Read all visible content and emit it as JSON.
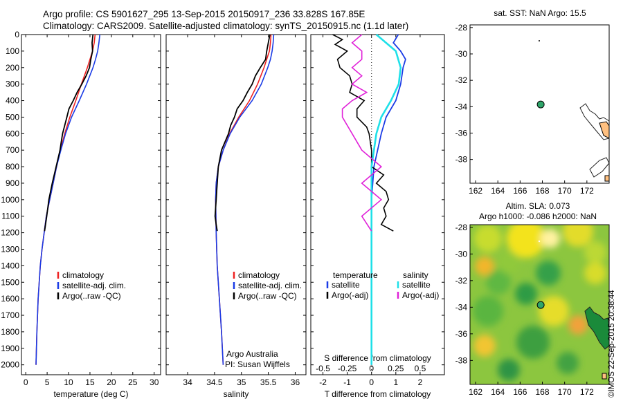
{
  "header": {
    "line1": "Argo profile: CS 5901627_295 13-Sep-2015 20150917_236 33.828S 167.85E",
    "line2": "Climatology: CARS2009. Satellite-adjusted climatology: synTS_20150915.nc (1.1d later)"
  },
  "credit": "©IMOS 22-Sep-2015 20:38:44",
  "colors": {
    "climatology": "#ee2222",
    "satellite": "#1a3be6",
    "argo": "#000000",
    "sal_satellite": "#1ee0e8",
    "sal_argo": "#e020d8"
  },
  "depth_axis": {
    "ticks": [
      0,
      100,
      200,
      300,
      400,
      500,
      600,
      700,
      800,
      900,
      1000,
      1100,
      1200,
      1300,
      1400,
      1500,
      1600,
      1700,
      1800,
      1900,
      2000
    ],
    "range": [
      0,
      2060
    ],
    "reversed": true
  },
  "chart_data": [
    {
      "id": "temperature",
      "type": "line",
      "xlabel": "temperature (deg C)",
      "ylabel": "",
      "xlim": [
        -1,
        31.5
      ],
      "xticks": [
        0,
        5,
        10,
        15,
        20,
        25,
        30
      ],
      "legend": [
        "climatology",
        "satellite-adj. clim.",
        "Argo(..raw -QC)"
      ],
      "series": [
        {
          "name": "climatology",
          "depth": [
            0,
            50,
            100,
            150,
            200,
            300,
            400,
            500,
            600,
            700,
            800,
            900,
            1000,
            1100,
            1200,
            1300,
            1400,
            1600,
            1800,
            2000
          ],
          "values": [
            16.2,
            16.0,
            15.6,
            15.0,
            14.4,
            13.0,
            11.7,
            10.3,
            9.1,
            8.1,
            7.2,
            6.4,
            5.6,
            4.8,
            4.3,
            3.8,
            3.4,
            2.9,
            2.6,
            2.4
          ]
        },
        {
          "name": "satellite-adj. clim.",
          "depth": [
            0,
            50,
            100,
            150,
            200,
            300,
            400,
            500,
            600,
            700,
            800,
            900,
            1000,
            1100,
            1200,
            1300,
            1400,
            1600,
            1800,
            2000
          ],
          "values": [
            17.3,
            17.1,
            16.8,
            16.3,
            15.7,
            14.2,
            12.5,
            10.7,
            9.3,
            8.2,
            7.2,
            6.4,
            5.6,
            4.8,
            4.3,
            3.8,
            3.4,
            2.9,
            2.6,
            2.4
          ]
        },
        {
          "name": "Argo(..raw -QC)",
          "depth": [
            0,
            50,
            100,
            150,
            200,
            250,
            300,
            350,
            400,
            450,
            500,
            550,
            600,
            650,
            700,
            800,
            900,
            1000,
            1100,
            1190
          ],
          "values": [
            15.7,
            15.5,
            15.6,
            15.2,
            14.9,
            14.1,
            13.1,
            12.0,
            11.1,
            10.1,
            9.6,
            9.1,
            8.6,
            8.3,
            8.0,
            7.1,
            6.2,
            5.4,
            4.9,
            4.4
          ]
        }
      ]
    },
    {
      "id": "salinity",
      "type": "line",
      "xlabel": "salinity",
      "ylabel": "",
      "xlim": [
        33.6,
        36.2
      ],
      "xticks": [
        34,
        34.5,
        35,
        35.5,
        36
      ],
      "legend": [
        "climatology",
        "satellite-adj. clim.",
        "Argo(..raw -QC)"
      ],
      "annotation": [
        "Argo Australia",
        "PI: Susan Wijffels"
      ],
      "series": [
        {
          "name": "climatology",
          "depth": [
            0,
            50,
            100,
            150,
            200,
            300,
            400,
            500,
            600,
            700,
            800,
            900,
            1000,
            1200,
            1400,
            1600,
            1800,
            2000
          ],
          "values": [
            35.55,
            35.54,
            35.52,
            35.47,
            35.42,
            35.3,
            35.15,
            34.95,
            34.78,
            34.66,
            34.57,
            34.53,
            34.52,
            34.53,
            34.55,
            34.59,
            34.63,
            34.66
          ]
        },
        {
          "name": "satellite-adj. clim.",
          "depth": [
            0,
            50,
            100,
            150,
            200,
            300,
            400,
            500,
            600,
            700,
            800,
            900,
            1000,
            1200,
            1400,
            1600,
            1800,
            2000
          ],
          "values": [
            35.6,
            35.59,
            35.57,
            35.54,
            35.49,
            35.37,
            35.2,
            34.97,
            34.79,
            34.66,
            34.57,
            34.53,
            34.52,
            34.53,
            34.55,
            34.59,
            34.63,
            34.66
          ]
        },
        {
          "name": "Argo(..raw -QC)",
          "depth": [
            0,
            50,
            100,
            150,
            200,
            250,
            300,
            350,
            400,
            450,
            500,
            550,
            600,
            700,
            800,
            900,
            950,
            1000,
            1050,
            1100,
            1150,
            1190
          ],
          "values": [
            35.53,
            35.5,
            35.47,
            35.45,
            35.35,
            35.26,
            35.2,
            35.11,
            35.03,
            34.92,
            34.87,
            34.8,
            34.76,
            34.63,
            34.57,
            34.55,
            34.54,
            34.53,
            34.52,
            34.51,
            34.53,
            34.55
          ]
        }
      ]
    },
    {
      "id": "difference",
      "type": "line",
      "xlabel": "T difference from climatology",
      "s_label": "S difference from climatology",
      "xlim": [
        -2.5,
        3
      ],
      "xticks": [
        -2,
        -1,
        0,
        1,
        2
      ],
      "s_xticks": [
        "-0.5",
        "-0.25",
        "0",
        "0.25",
        "0.5"
      ],
      "legend_titles": [
        "temperature",
        "salinity"
      ],
      "legend": [
        "satellite",
        "Argo(-adj)",
        "satellite",
        "Argo(-adj)"
      ],
      "series": [
        {
          "name": "satellite",
          "depth": [
            0,
            50,
            100,
            150,
            200,
            300,
            400,
            500,
            600,
            800,
            1000,
            1200,
            1600,
            2000
          ],
          "values": [
            1.1,
            0.9,
            1.2,
            1.4,
            1.3,
            1.2,
            1.0,
            0.6,
            0.4,
            0.1,
            0.0,
            0.0,
            0.0,
            0.0
          ]
        },
        {
          "name": "Argo(-adj)",
          "depth": [
            0,
            30,
            60,
            100,
            150,
            200,
            250,
            300,
            350,
            400,
            450,
            500,
            560,
            600,
            700,
            800,
            850,
            900,
            950,
            1000,
            1050,
            1100,
            1150,
            1190
          ],
          "values": [
            -1.6,
            -1.2,
            -1.5,
            -1.0,
            -1.4,
            -1.3,
            -0.9,
            -0.8,
            -0.9,
            -0.3,
            -0.6,
            -0.6,
            -0.2,
            -0.1,
            0.0,
            0.0,
            0.5,
            0.2,
            0.6,
            0.7,
            0.5,
            0.6,
            0.4,
            0.9
          ]
        },
        {
          "name": "satellite",
          "depth": [
            0,
            100,
            200,
            300,
            400,
            500,
            600,
            800,
            1000,
            1200,
            1600,
            2000
          ],
          "values": [
            0.05,
            0.25,
            0.3,
            0.28,
            0.2,
            0.1,
            0.05,
            0.0,
            0.0,
            0.0,
            0.0,
            0.0
          ]
        },
        {
          "name": "Argo(-adj)",
          "depth": [
            0,
            50,
            100,
            150,
            200,
            250,
            300,
            350,
            400,
            450,
            500,
            600,
            700,
            800,
            900,
            1000,
            1100,
            1190
          ],
          "values": [
            -0.1,
            -0.2,
            -0.1,
            -0.1,
            -0.2,
            -0.1,
            -0.2,
            -0.05,
            -0.2,
            -0.3,
            -0.3,
            -0.2,
            -0.1,
            0.1,
            -0.1,
            0.1,
            -0.1,
            0.0
          ]
        }
      ]
    },
    {
      "id": "sst_map",
      "type": "scatter",
      "title": "sat. SST: NaN Argo: 15.5",
      "xlim": [
        161.5,
        174
      ],
      "ylim": [
        -39.8,
        -27.8
      ],
      "xticks": [
        162,
        164,
        166,
        168,
        170,
        172
      ],
      "yticks": [
        -28,
        -30,
        -32,
        -34,
        -36,
        -38
      ],
      "points": [
        {
          "x": 167.85,
          "y": -33.83
        }
      ]
    },
    {
      "id": "sla_map",
      "type": "heatmap",
      "title": [
        "Altim. SLA: 0.073",
        "Argo h1000: -0.086 h2000: NaN"
      ],
      "xlim": [
        161.5,
        174
      ],
      "ylim": [
        -39.8,
        -27.8
      ],
      "xticks": [
        162,
        164,
        166,
        168,
        170,
        172
      ],
      "yticks": [
        -28,
        -30,
        -32,
        -34,
        -36,
        -38
      ],
      "points": [
        {
          "x": 167.85,
          "y": -33.83
        }
      ]
    }
  ]
}
